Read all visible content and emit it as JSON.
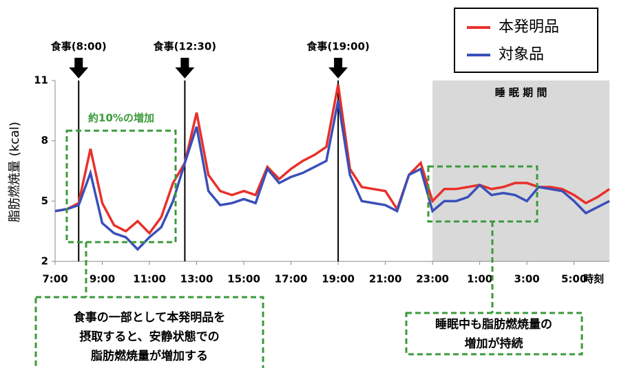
{
  "chart_data": {
    "type": "line",
    "y_label": "脂肪燃焼量 (kcal)",
    "x_label": "時刻",
    "x": [
      7,
      7.5,
      8,
      8.5,
      9,
      9.5,
      10,
      10.5,
      11,
      11.5,
      12,
      12.5,
      13,
      13.5,
      14,
      14.5,
      15,
      15.5,
      16,
      16.5,
      17,
      17.5,
      18,
      18.5,
      19,
      19.5,
      20,
      20.5,
      21,
      21.5,
      22,
      22.5,
      23,
      23.5,
      24,
      24.5,
      25,
      25.5,
      26,
      26.5,
      27,
      27.5,
      28,
      28.5,
      29,
      29.5,
      30,
      30.5
    ],
    "series": [
      {
        "name": "本発明品",
        "color": "#e8302a",
        "values": [
          4.5,
          4.6,
          4.9,
          7.6,
          4.9,
          3.8,
          3.5,
          4.0,
          3.4,
          4.2,
          5.9,
          6.9,
          9.4,
          6.3,
          5.5,
          5.3,
          5.5,
          5.3,
          6.7,
          6.1,
          6.6,
          7.0,
          7.3,
          7.7,
          10.8,
          6.6,
          5.7,
          5.6,
          5.5,
          4.6,
          6.3,
          6.9,
          5.0,
          5.6,
          5.6,
          5.7,
          5.8,
          5.6,
          5.7,
          5.9,
          5.9,
          5.7,
          5.7,
          5.6,
          5.3,
          4.9,
          5.2,
          5.6
        ]
      },
      {
        "name": "対象品",
        "color": "#3a4fb8",
        "values": [
          4.5,
          4.6,
          4.8,
          6.4,
          3.9,
          3.4,
          3.2,
          2.6,
          3.2,
          3.7,
          5.0,
          6.9,
          8.7,
          5.5,
          4.8,
          4.9,
          5.1,
          4.9,
          6.6,
          5.9,
          6.2,
          6.4,
          6.7,
          7.0,
          10.0,
          6.3,
          5.0,
          4.9,
          4.8,
          4.5,
          6.3,
          6.6,
          4.5,
          5.0,
          5.0,
          5.2,
          5.8,
          5.3,
          5.4,
          5.3,
          5.0,
          5.7,
          5.6,
          5.5,
          5.0,
          4.4,
          4.7,
          5.0
        ]
      }
    ],
    "xlim": [
      7,
      30.5
    ],
    "xticks": [
      {
        "value": 7,
        "label": "7:00"
      },
      {
        "value": 9,
        "label": "9:00"
      },
      {
        "value": 11,
        "label": "11:00"
      },
      {
        "value": 13,
        "label": "13:00"
      },
      {
        "value": 15,
        "label": "15:00"
      },
      {
        "value": 17,
        "label": "17:00"
      },
      {
        "value": 19,
        "label": "19:00"
      },
      {
        "value": 21,
        "label": "21:00"
      },
      {
        "value": 23,
        "label": "23:00"
      },
      {
        "value": 25,
        "label": "1:00"
      },
      {
        "value": 27,
        "label": "3:00"
      },
      {
        "value": 29,
        "label": "5:00"
      }
    ],
    "ylim": [
      2,
      11
    ],
    "yticks": [
      2,
      5,
      8,
      11
    ],
    "events": [
      {
        "x": 8,
        "label": "食事(8:00)"
      },
      {
        "x": 12.5,
        "label": "食事(12:30)"
      },
      {
        "x": 19,
        "label": "食事(19:00)"
      }
    ],
    "shaded": {
      "x": [
        23,
        30.5
      ],
      "label": "睡 眠 期 間"
    },
    "box_label": "約10%の増加",
    "callouts": [
      [
        "食事の一部として本発明品を",
        "摂取すると、安静状態での",
        "脂肪燃焼量が増加する"
      ],
      [
        "睡眠中も脂肪燃焼量の",
        "増加が持続"
      ]
    ]
  }
}
